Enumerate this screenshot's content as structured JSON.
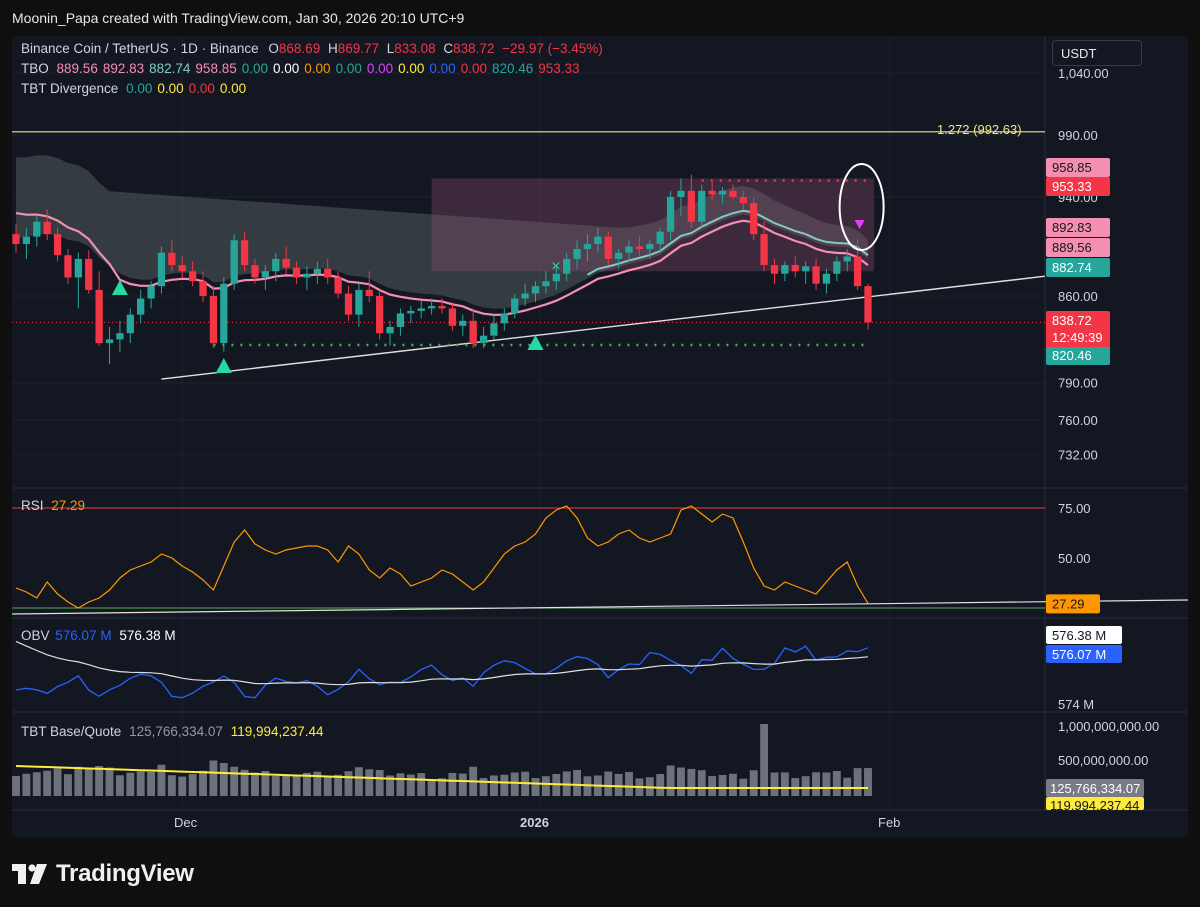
{
  "header": {
    "credit": "Moonin_Papa created with TradingView.com, Jan 30, 2026 20:10 UTC+9"
  },
  "legend": {
    "symbol": "Binance Coin / TetherUS · 1D · Binance",
    "o_label": "O",
    "o": "868.69",
    "h_label": "H",
    "h": "869.77",
    "l_label": "L",
    "l": "833.08",
    "c_label": "C",
    "c": "838.72",
    "change": "−29.97 (−3.45%)",
    "tbo_label": "TBO",
    "tbo_values": [
      {
        "v": "889.56",
        "color": "#f48fb1"
      },
      {
        "v": "892.83",
        "color": "#f48fb1"
      },
      {
        "v": "882.74",
        "color": "#80cbc4"
      },
      {
        "v": "958.85",
        "color": "#f48fb1"
      },
      {
        "v": "0.00",
        "color": "#26a69a"
      },
      {
        "v": "0.00",
        "color": "#ffffff"
      },
      {
        "v": "0.00",
        "color": "#ff9800"
      },
      {
        "v": "0.00",
        "color": "#26a69a"
      },
      {
        "v": "0.00",
        "color": "#e040fb"
      },
      {
        "v": "0.00",
        "color": "#ffeb3b"
      },
      {
        "v": "0.00",
        "color": "#2962ff"
      },
      {
        "v": "0.00",
        "color": "#f23645"
      },
      {
        "v": "820.46",
        "color": "#26a69a"
      },
      {
        "v": "953.33",
        "color": "#f23645"
      }
    ],
    "tbt_div_label": "TBT Divergence",
    "tbt_div_values": [
      {
        "v": "0.00",
        "color": "#26a69a"
      },
      {
        "v": "0.00",
        "color": "#ffeb3b"
      },
      {
        "v": "0.00",
        "color": "#f23645"
      },
      {
        "v": "0.00",
        "color": "#ffeb3b"
      }
    ]
  },
  "currency_button": "USDT",
  "fib_label": "1.272 (992.63)",
  "countdown": "12:49:39",
  "watermark": "TradingView",
  "colors": {
    "up": "#26a69a",
    "down": "#f23645",
    "bg": "#131722",
    "pink": "#f48fb1",
    "teal": "#80cbc4"
  },
  "chart_data": [
    {
      "type": "candlestick",
      "x_ticks": [
        "Dec",
        "2026",
        "Feb"
      ],
      "y_ticks": [
        1040,
        990,
        940,
        860,
        790,
        760,
        732
      ],
      "y_tick_labels": [
        "1,040.00",
        "990.00",
        "940.00",
        "860.00",
        "790.00",
        "760.00",
        "732.00"
      ],
      "ylim": [
        705,
        1070
      ],
      "candles": [
        [
          910,
          918,
          895,
          902
        ],
        [
          902,
          915,
          890,
          908
        ],
        [
          908,
          925,
          900,
          920
        ],
        [
          920,
          930,
          905,
          910
        ],
        [
          910,
          915,
          888,
          893
        ],
        [
          893,
          898,
          870,
          875
        ],
        [
          875,
          895,
          850,
          890
        ],
        [
          890,
          897,
          862,
          865
        ],
        [
          865,
          880,
          820,
          822
        ],
        [
          822,
          835,
          805,
          825
        ],
        [
          825,
          840,
          815,
          830
        ],
        [
          830,
          850,
          822,
          845
        ],
        [
          845,
          865,
          838,
          858
        ],
        [
          858,
          872,
          850,
          868
        ],
        [
          868,
          900,
          862,
          895
        ],
        [
          895,
          905,
          880,
          885
        ],
        [
          885,
          892,
          875,
          880
        ],
        [
          880,
          888,
          868,
          872
        ],
        [
          872,
          880,
          855,
          860
        ],
        [
          860,
          868,
          818,
          822
        ],
        [
          822,
          875,
          815,
          870
        ],
        [
          870,
          910,
          865,
          905
        ],
        [
          905,
          912,
          880,
          885
        ],
        [
          885,
          890,
          870,
          875
        ],
        [
          875,
          885,
          865,
          880
        ],
        [
          880,
          895,
          872,
          890
        ],
        [
          890,
          900,
          878,
          883
        ],
        [
          883,
          888,
          870,
          875
        ],
        [
          875,
          884,
          865,
          878
        ],
        [
          878,
          888,
          870,
          882
        ],
        [
          882,
          890,
          870,
          875
        ],
        [
          875,
          880,
          858,
          862
        ],
        [
          862,
          868,
          840,
          845
        ],
        [
          845,
          870,
          835,
          865
        ],
        [
          865,
          880,
          855,
          860
        ],
        [
          860,
          865,
          825,
          830
        ],
        [
          830,
          840,
          820,
          835
        ],
        [
          835,
          850,
          828,
          846
        ],
        [
          846,
          852,
          838,
          848
        ],
        [
          848,
          856,
          842,
          850
        ],
        [
          850,
          858,
          845,
          852
        ],
        [
          852,
          858,
          846,
          850
        ],
        [
          850,
          855,
          832,
          836
        ],
        [
          836,
          845,
          828,
          840
        ],
        [
          840,
          850,
          818,
          822
        ],
        [
          822,
          835,
          818,
          828
        ],
        [
          828,
          845,
          825,
          838
        ],
        [
          838,
          850,
          832,
          846
        ],
        [
          846,
          862,
          842,
          858
        ],
        [
          858,
          870,
          852,
          862
        ],
        [
          862,
          872,
          855,
          868
        ],
        [
          868,
          880,
          862,
          872
        ],
        [
          872,
          885,
          865,
          878
        ],
        [
          878,
          895,
          872,
          890
        ],
        [
          890,
          905,
          882,
          898
        ],
        [
          898,
          910,
          888,
          902
        ],
        [
          902,
          915,
          895,
          908
        ],
        [
          908,
          912,
          885,
          890
        ],
        [
          890,
          898,
          882,
          895
        ],
        [
          895,
          905,
          888,
          900
        ],
        [
          900,
          908,
          892,
          898
        ],
        [
          898,
          905,
          890,
          902
        ],
        [
          902,
          915,
          895,
          912
        ],
        [
          912,
          945,
          905,
          940
        ],
        [
          940,
          955,
          925,
          945
        ],
        [
          945,
          958,
          915,
          920
        ],
        [
          920,
          950,
          915,
          945
        ],
        [
          945,
          952,
          938,
          942
        ],
        [
          942,
          948,
          935,
          945
        ],
        [
          945,
          950,
          938,
          940
        ],
        [
          940,
          945,
          930,
          935
        ],
        [
          935,
          940,
          905,
          910
        ],
        [
          910,
          920,
          880,
          885
        ],
        [
          885,
          890,
          870,
          878
        ],
        [
          878,
          888,
          872,
          885
        ],
        [
          885,
          892,
          875,
          880
        ],
        [
          880,
          888,
          870,
          884
        ],
        [
          884,
          890,
          865,
          870
        ],
        [
          870,
          882,
          862,
          878
        ],
        [
          878,
          892,
          872,
          888
        ],
        [
          888,
          898,
          880,
          892
        ],
        [
          892,
          906,
          865,
          868
        ],
        [
          868,
          870,
          833,
          838.72
        ]
      ],
      "markers": {
        "long_signal": "up-triangle",
        "short_signal": "down-triangle",
        "cross": "x-mark"
      },
      "price_labels": [
        {
          "value": "958.85",
          "color": "#f48fb1"
        },
        {
          "value": "953.33",
          "color": "#f23645"
        },
        {
          "value": "892.83",
          "color": "#f48fb1"
        },
        {
          "value": "889.56",
          "color": "#f48fb1"
        },
        {
          "value": "882.74",
          "color": "#26a69a"
        },
        {
          "value": "838.72",
          "color": "#f23645"
        },
        {
          "value": "820.46",
          "color": "#26a69a"
        }
      ]
    },
    {
      "type": "line",
      "name": "RSI",
      "title": "RSI",
      "current": "27.29",
      "y_ticks": [
        75,
        50
      ],
      "y_tick_labels": [
        "75.00",
        "50.00"
      ],
      "ylim": [
        20,
        85
      ],
      "values": [
        35,
        33,
        30,
        38,
        32,
        28,
        25,
        28,
        30,
        34,
        40,
        44,
        46,
        48,
        52,
        50,
        46,
        43,
        39,
        34,
        46,
        58,
        64,
        57,
        54,
        52,
        54,
        55,
        56,
        56,
        54,
        48,
        56,
        52,
        44,
        40,
        45,
        42,
        36,
        38,
        40,
        44,
        42,
        38,
        34,
        38,
        45,
        52,
        56,
        58,
        62,
        70,
        74,
        76,
        70,
        60,
        56,
        58,
        62,
        64,
        60,
        58,
        60,
        62,
        74,
        76,
        72,
        68,
        72,
        70,
        58,
        45,
        36,
        34,
        38,
        36,
        34,
        32,
        38,
        44,
        48,
        36,
        27.29
      ]
    },
    {
      "type": "line",
      "name": "OBV",
      "title": "OBV",
      "legend_values": [
        "576.07 M",
        "576.38 M"
      ],
      "y_tick_labels": [
        "576.38 M",
        "576.07 M",
        "574 M"
      ]
    },
    {
      "type": "bar",
      "name": "TBT Base/Quote",
      "title": "TBT Base/Quote",
      "legend_values": [
        "125,766,334.07",
        "119,994,237.44"
      ],
      "y_tick_labels": [
        "1,000,000,000.00",
        "500,000,000.00"
      ],
      "current_labels": [
        "125,766,334.07",
        "119,994,237.44"
      ]
    }
  ]
}
